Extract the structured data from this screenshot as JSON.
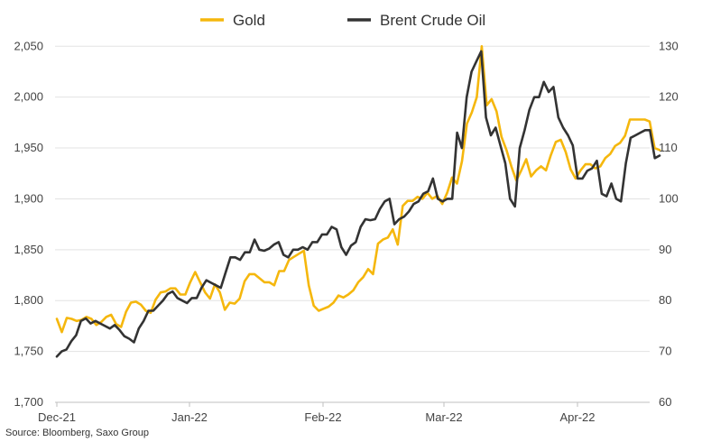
{
  "chart_data": {
    "type": "line",
    "title": "",
    "source": "Source: Bloomberg, Saxo Group",
    "x_ticks": [
      "Dec-21",
      "Jan-22",
      "Feb-22",
      "Mar-22",
      "Apr-22"
    ],
    "y_left": {
      "ticks": [
        "1,700",
        "1,750",
        "1,800",
        "1,850",
        "1,900",
        "1,950",
        "2,000",
        "2,050"
      ],
      "range": [
        1700,
        2060
      ]
    },
    "y_right": {
      "ticks": [
        "60",
        "70",
        "80",
        "90",
        "100",
        "110",
        "120",
        "130"
      ],
      "range": [
        60,
        132
      ]
    },
    "legend_position": "top-center",
    "grid": "horizontal",
    "series": [
      {
        "name": "Gold",
        "color": "#F5B70D",
        "axis": "left",
        "values": [
          1782,
          1769,
          1783,
          1782,
          1780,
          1781,
          1784,
          1782,
          1776,
          1779,
          1784,
          1786,
          1777,
          1774,
          1789,
          1798,
          1799,
          1796,
          1790,
          1788,
          1801,
          1808,
          1809,
          1812,
          1812,
          1806,
          1806,
          1818,
          1828,
          1818,
          1808,
          1802,
          1816,
          1808,
          1791,
          1798,
          1797,
          1802,
          1819,
          1826,
          1826,
          1822,
          1818,
          1818,
          1815,
          1829,
          1829,
          1840,
          1843,
          1846,
          1849,
          1815,
          1795,
          1790,
          1792,
          1794,
          1798,
          1805,
          1803,
          1806,
          1810,
          1818,
          1823,
          1831,
          1826,
          1856,
          1860,
          1862,
          1870,
          1855,
          1893,
          1898,
          1898,
          1902,
          1900,
          1906,
          1900,
          1903,
          1895,
          1906,
          1921,
          1915,
          1937,
          1974,
          1985,
          2000,
          2050,
          1992,
          1998,
          1986,
          1961,
          1948,
          1932,
          1918,
          1928,
          1939,
          1922,
          1928,
          1932,
          1928,
          1943,
          1956,
          1958,
          1946,
          1929,
          1920,
          1928,
          1934,
          1934,
          1930,
          1932,
          1940,
          1944,
          1952,
          1955,
          1962,
          1978,
          1978,
          1978,
          1978,
          1976,
          1950,
          1948
        ]
      },
      {
        "name": "Brent Crude Oil",
        "color": "#333333",
        "axis": "right",
        "values": [
          69.0,
          70.0,
          70.4,
          72.0,
          73.2,
          76.0,
          76.5,
          75.5,
          76.0,
          75.5,
          75.0,
          74.5,
          75.2,
          74.2,
          73.0,
          72.5,
          71.8,
          74.5,
          76.0,
          78.0,
          78.0,
          79.0,
          80.0,
          81.3,
          81.8,
          80.5,
          80.0,
          79.5,
          80.5,
          80.5,
          82.5,
          84.0,
          83.5,
          83.0,
          82.5,
          85.5,
          88.5,
          88.5,
          88.0,
          89.5,
          89.5,
          92.0,
          90.0,
          89.8,
          90.2,
          91.0,
          91.5,
          89.0,
          88.5,
          90.0,
          90.0,
          90.5,
          90.0,
          91.5,
          91.5,
          93.0,
          93.0,
          94.5,
          94.0,
          90.5,
          89.0,
          90.8,
          91.5,
          94.5,
          96.0,
          95.8,
          96.0,
          98.0,
          99.5,
          100.0,
          95.0,
          96.0,
          96.5,
          97.5,
          99.0,
          99.5,
          101.0,
          101.5,
          104.0,
          100.0,
          99.5,
          100.0,
          100.0,
          113.0,
          110.0,
          120.0,
          125.0,
          127.0,
          129.0,
          116.0,
          112.5,
          114.0,
          110.5,
          107.0,
          100.0,
          98.5,
          110.0,
          113.5,
          117.5,
          120.0,
          120.0,
          123.0,
          121.0,
          122.0,
          116.0,
          114.0,
          112.5,
          110.5,
          104.0,
          104.0,
          105.5,
          106.0,
          107.5,
          101.0,
          100.5,
          103.0,
          100.0,
          99.5,
          107.0,
          112.0,
          112.5,
          113.0,
          113.5,
          113.5,
          108.0,
          108.5
        ]
      }
    ]
  }
}
